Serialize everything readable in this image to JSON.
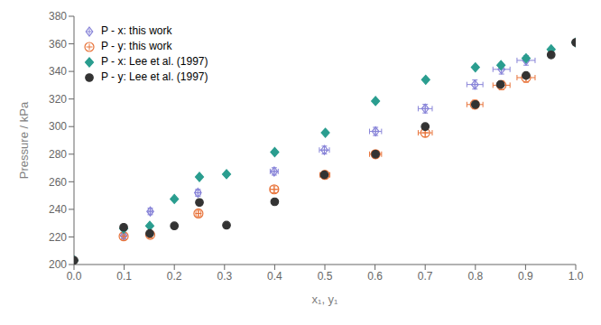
{
  "chart_data": {
    "type": "scatter",
    "xlabel": "x₁, y₁",
    "ylabel": "Pressure / kPa",
    "xlim": [
      0,
      1
    ],
    "ylim": [
      200,
      380
    ],
    "xticks": [
      {
        "value": 0,
        "label": "0.0"
      },
      0.1,
      0.2,
      0.3,
      0.4,
      0.5,
      0.6,
      0.7,
      0.8,
      0.9,
      {
        "value": 1,
        "label": "1.0"
      }
    ],
    "yticks": [
      200,
      220,
      240,
      260,
      280,
      300,
      320,
      340,
      360,
      380
    ],
    "grid": false,
    "legend": "upper left",
    "series": [
      {
        "name": "P - x: this work",
        "marker": "open_diamond_plus",
        "color": "#8884d8",
        "x": [
          0.099,
          0.152,
          0.247,
          0.399,
          0.499,
          0.601,
          0.7,
          0.799,
          0.852,
          0.901
        ],
        "y": [
          221.0,
          238.5,
          252.0,
          267.5,
          283.0,
          296.5,
          313.0,
          330.5,
          341.5,
          348.0
        ],
        "x_error": [
          0.00198,
          0.00304,
          0.00494,
          0.00798,
          0.00998,
          0.01202,
          0.014,
          0.01598,
          0.01704,
          0.01802
        ],
        "y_error": [
          2.21,
          2.385,
          2.52,
          2.675,
          2.83,
          2.965,
          3.13,
          3.305,
          3.415,
          3.48
        ]
      },
      {
        "name": "P - y: this work",
        "marker": "open_circle_plus",
        "color": "#e8743b",
        "x": [
          0.099,
          0.152,
          0.248,
          0.399,
          0.5,
          0.601,
          0.7,
          0.799,
          0.852,
          0.901
        ],
        "y": [
          220.5,
          221.5,
          237.0,
          254.5,
          265.0,
          280.0,
          295.5,
          316.0,
          330.0,
          335.5
        ],
        "x_error": [
          0.00198,
          0.00304,
          0.00496,
          0.00798,
          0.01,
          0.01202,
          0.014,
          0.01598,
          0.01704,
          0.01802
        ],
        "y_error": [
          2.205,
          2.215,
          2.37,
          2.545,
          2.65,
          2.8,
          2.955,
          3.16,
          3.3,
          3.355
        ]
      },
      {
        "name": "P - x: Lee et al. (1997)",
        "marker": "diamond",
        "color": "#2a9d8f",
        "x": [
          0.0,
          0.099,
          0.151,
          0.2,
          0.25,
          0.304,
          0.4,
          0.501,
          0.601,
          0.701,
          0.8,
          0.851,
          0.901,
          0.951,
          1.0
        ],
        "y": [
          203.0,
          226.0,
          228.0,
          247.5,
          263.5,
          265.5,
          281.5,
          295.5,
          318.5,
          334.0,
          343.0,
          344.5,
          349.5,
          356.0,
          361.0
        ]
      },
      {
        "name": "P - y: Lee et al. (1997)",
        "marker": "circle",
        "color": "#333333",
        "x": [
          0.0,
          0.099,
          0.151,
          0.2,
          0.25,
          0.304,
          0.4,
          0.499,
          0.601,
          0.7,
          0.8,
          0.85,
          0.901,
          0.951,
          1.0
        ],
        "y": [
          203.0,
          227.0,
          222.5,
          228.0,
          245.0,
          228.5,
          245.5,
          265.0,
          280.0,
          300.0,
          316.0,
          330.5,
          337.0,
          352.0,
          361.0
        ]
      }
    ]
  }
}
